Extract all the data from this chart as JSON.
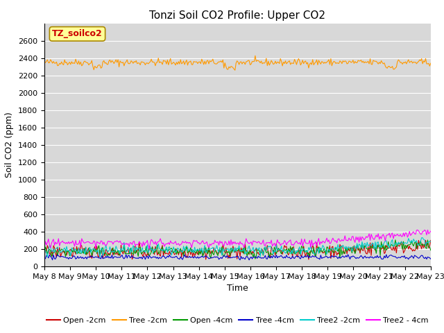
{
  "title": "Tonzi Soil CO2 Profile: Upper CO2",
  "xlabel": "Time",
  "ylabel": "Soil CO2 (ppm)",
  "ylim": [
    0,
    2800
  ],
  "yticks": [
    0,
    200,
    400,
    600,
    800,
    1000,
    1200,
    1400,
    1600,
    1800,
    2000,
    2200,
    2400,
    2600
  ],
  "bg_color": "#d8d8d8",
  "plot_bg_color": "#d8d8d8",
  "fig_bg_color": "#ffffff",
  "series_order": [
    "Open -2cm",
    "Tree -2cm",
    "Open -4cm",
    "Tree -4cm",
    "Tree2 -2cm",
    "Tree2 - 4cm"
  ],
  "series": {
    "Open -2cm": {
      "color": "#cc0000"
    },
    "Tree -2cm": {
      "color": "#ff9900"
    },
    "Open -4cm": {
      "color": "#009900"
    },
    "Tree -4cm": {
      "color": "#0000cc"
    },
    "Tree2 -2cm": {
      "color": "#00cccc"
    },
    "Tree2 - 4cm": {
      "color": "#ff00ff"
    }
  },
  "n_points": 384,
  "x_start": 8,
  "x_end": 23,
  "xtick_positions": [
    8,
    9,
    10,
    11,
    12,
    13,
    14,
    15,
    16,
    17,
    18,
    19,
    20,
    21,
    22,
    23
  ],
  "xtick_labels": [
    "May 8",
    "May 9",
    "May 10",
    "May 11",
    "May 12",
    "May 13",
    "May 14",
    "May 15",
    "May 16",
    "May 17",
    "May 18",
    "May 19",
    "May 20",
    "May 21",
    "May 22",
    "May 23"
  ],
  "watermark_text": "TZ_soilco2",
  "watermark_bg": "#ffff99",
  "watermark_border": "#aa8800",
  "title_fontsize": 11,
  "axis_label_fontsize": 9,
  "tick_fontsize": 8,
  "legend_fontsize": 8
}
